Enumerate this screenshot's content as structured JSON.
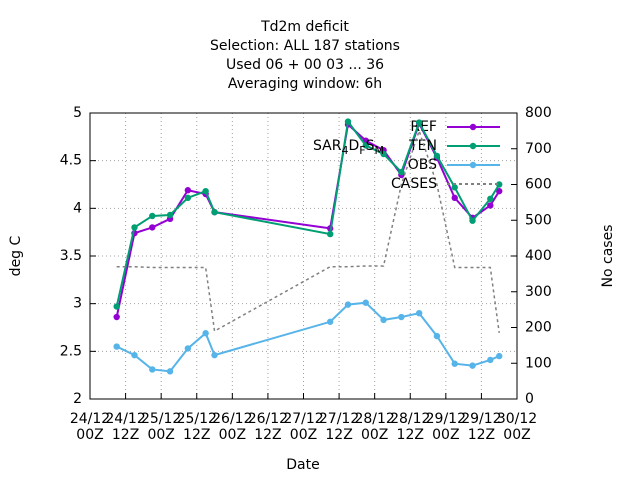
{
  "chart_data": {
    "type": "line",
    "title": [
      "Td2m deficit",
      "Selection: ALL    187 stations",
      "Used  06 + 00 03 ... 36",
      "Averaging window:  6h"
    ],
    "legend_title": "SAR_4D_FS_M",
    "xlabel": "Date",
    "ylabel": "deg C",
    "y2label": "No cases",
    "x": [
      9,
      15,
      21,
      27,
      33,
      39,
      42,
      81,
      87,
      93,
      99,
      105,
      111,
      117,
      123,
      129,
      135,
      138
    ],
    "xlim": [
      0,
      144
    ],
    "xticks": [
      {
        "value": 0,
        "label": "24/12\n00Z"
      },
      {
        "value": 12,
        "label": "24/12\n12Z"
      },
      {
        "value": 24,
        "label": "25/12\n00Z"
      },
      {
        "value": 36,
        "label": "25/12\n12Z"
      },
      {
        "value": 48,
        "label": "26/12\n00Z"
      },
      {
        "value": 60,
        "label": "26/12\n12Z"
      },
      {
        "value": 72,
        "label": "27/12\n00Z"
      },
      {
        "value": 84,
        "label": "27/12\n12Z"
      },
      {
        "value": 96,
        "label": "28/12\n00Z"
      },
      {
        "value": 108,
        "label": "28/12\n12Z"
      },
      {
        "value": 120,
        "label": "29/12\n00Z"
      },
      {
        "value": 132,
        "label": "29/12\n12Z"
      },
      {
        "value": 144,
        "label": "30/12\n00Z"
      }
    ],
    "ylim": [
      2,
      5
    ],
    "yticks": [
      2,
      2.5,
      3,
      3.5,
      4,
      4.5,
      5
    ],
    "y2lim": [
      0,
      800
    ],
    "y2ticks": [
      0,
      100,
      200,
      300,
      400,
      500,
      600,
      700,
      800
    ],
    "grid": true,
    "series": [
      {
        "name": "REF",
        "color": "#9400d3",
        "style": "linespoints",
        "values": [
          2.86,
          3.74,
          3.8,
          3.89,
          4.19,
          4.15,
          3.96,
          3.79,
          4.88,
          4.71,
          4.61,
          4.35,
          4.89,
          4.53,
          4.11,
          3.9,
          4.03,
          4.18
        ]
      },
      {
        "name": "TEN",
        "color": "#009e73",
        "style": "linespoints",
        "values": [
          2.97,
          3.8,
          3.92,
          3.93,
          4.11,
          4.18,
          3.96,
          3.73,
          4.91,
          4.66,
          4.57,
          4.38,
          4.9,
          4.55,
          4.22,
          3.87,
          4.1,
          4.25
        ]
      },
      {
        "name": "OBS",
        "color": "#56b4e9",
        "style": "linespoints",
        "values": [
          2.55,
          2.46,
          2.31,
          2.29,
          2.53,
          2.69,
          2.46,
          2.81,
          2.99,
          3.01,
          2.83,
          2.86,
          2.9,
          2.66,
          2.37,
          2.35,
          2.41,
          2.45
        ]
      },
      {
        "name": "CASES",
        "color": "#808080",
        "style": "dashed",
        "axis": "y2",
        "values": [
          370,
          370,
          368,
          368,
          368,
          368,
          190,
          370,
          370,
          372,
          372,
          600,
          750,
          600,
          368,
          368,
          368,
          185
        ]
      }
    ]
  }
}
